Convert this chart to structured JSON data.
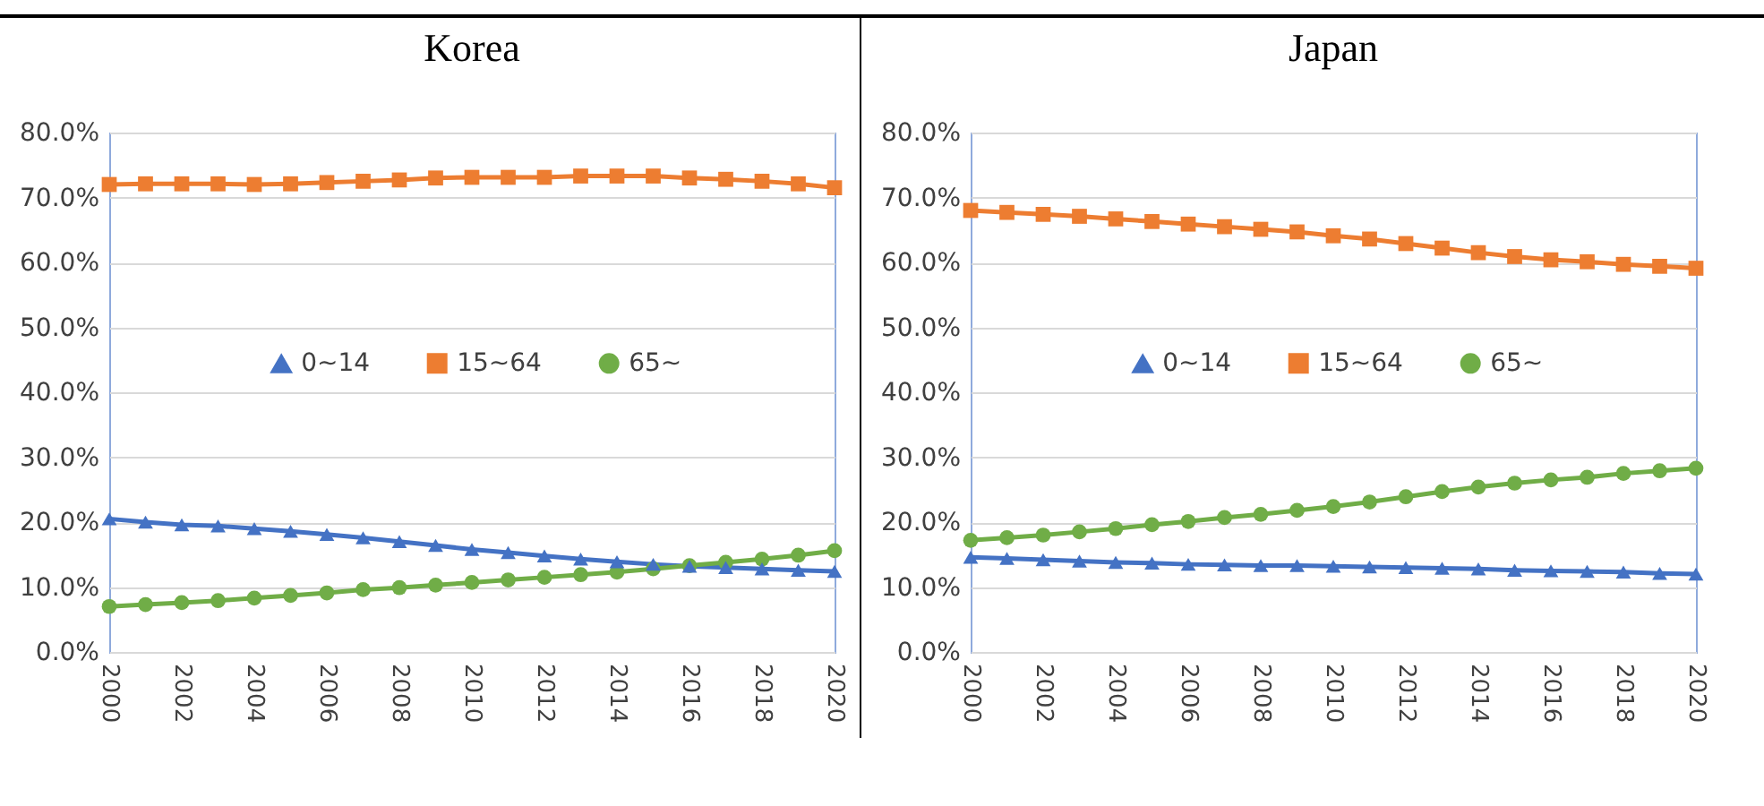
{
  "chart_data": [
    {
      "type": "line",
      "title": "Korea",
      "categories": [
        "2000",
        null,
        "2002",
        null,
        "2004",
        null,
        "2006",
        null,
        "2008",
        null,
        "2010",
        null,
        "2012",
        null,
        "2014",
        null,
        "2016",
        null,
        "2018",
        null,
        "2020"
      ],
      "ylim": [
        0,
        80
      ],
      "yticks": [
        {
          "value": 0,
          "label": "0.0%"
        },
        {
          "value": 10,
          "label": "10.0%"
        },
        {
          "value": 20,
          "label": "20.0%"
        },
        {
          "value": 30,
          "label": "30.0%"
        },
        {
          "value": 40,
          "label": "40.0%"
        },
        {
          "value": 50,
          "label": "50.0%"
        },
        {
          "value": 60,
          "label": "60.0%"
        },
        {
          "value": 70,
          "label": "70.0%"
        },
        {
          "value": 80,
          "label": "80.0%"
        }
      ],
      "grid": "y",
      "legend": "center",
      "series": [
        {
          "name": "0~14",
          "color": "#4472c4",
          "marker": "triangle",
          "values": [
            20.5,
            20.0,
            19.6,
            19.4,
            19.0,
            18.6,
            18.1,
            17.6,
            17.0,
            16.4,
            15.8,
            15.3,
            14.8,
            14.3,
            13.9,
            13.5,
            13.2,
            13.0,
            12.8,
            12.6,
            12.4
          ]
        },
        {
          "name": "15~64",
          "color": "#ed7d31",
          "marker": "square",
          "values": [
            72.0,
            72.1,
            72.1,
            72.1,
            72.0,
            72.1,
            72.3,
            72.5,
            72.7,
            73.0,
            73.1,
            73.1,
            73.1,
            73.3,
            73.3,
            73.3,
            73.0,
            72.8,
            72.5,
            72.1,
            71.5
          ]
        },
        {
          "name": "65~",
          "color": "#70ad47",
          "marker": "circle",
          "values": [
            7.0,
            7.3,
            7.6,
            7.9,
            8.3,
            8.7,
            9.1,
            9.6,
            9.9,
            10.3,
            10.7,
            11.1,
            11.5,
            11.9,
            12.3,
            12.8,
            13.3,
            13.8,
            14.3,
            14.9,
            15.6
          ]
        }
      ]
    },
    {
      "type": "line",
      "title": "Japan",
      "categories": [
        "2000",
        null,
        "2002",
        null,
        "2004",
        null,
        "2006",
        null,
        "2008",
        null,
        "2010",
        null,
        "2012",
        null,
        "2014",
        null,
        "2016",
        null,
        "2018",
        null,
        "2020"
      ],
      "ylim": [
        0,
        80
      ],
      "yticks": [
        {
          "value": 0,
          "label": "0.0%"
        },
        {
          "value": 10,
          "label": "10.0%"
        },
        {
          "value": 20,
          "label": "20.0%"
        },
        {
          "value": 30,
          "label": "30.0%"
        },
        {
          "value": 40,
          "label": "40.0%"
        },
        {
          "value": 50,
          "label": "50.0%"
        },
        {
          "value": 60,
          "label": "60.0%"
        },
        {
          "value": 70,
          "label": "70.0%"
        },
        {
          "value": 80,
          "label": "80.0%"
        }
      ],
      "grid": "y",
      "legend": "center",
      "series": [
        {
          "name": "0~14",
          "color": "#4472c4",
          "marker": "triangle",
          "values": [
            14.6,
            14.4,
            14.2,
            14.0,
            13.8,
            13.7,
            13.5,
            13.4,
            13.3,
            13.3,
            13.2,
            13.1,
            13.0,
            12.9,
            12.8,
            12.6,
            12.5,
            12.4,
            12.3,
            12.1,
            12.0
          ]
        },
        {
          "name": "15~64",
          "color": "#ed7d31",
          "marker": "square",
          "values": [
            68.0,
            67.7,
            67.4,
            67.1,
            66.7,
            66.3,
            65.9,
            65.5,
            65.1,
            64.7,
            64.1,
            63.6,
            62.9,
            62.2,
            61.5,
            60.9,
            60.4,
            60.1,
            59.7,
            59.4,
            59.1
          ]
        },
        {
          "name": "65~",
          "color": "#70ad47",
          "marker": "circle",
          "values": [
            17.2,
            17.6,
            18.0,
            18.5,
            19.0,
            19.6,
            20.1,
            20.7,
            21.2,
            21.8,
            22.4,
            23.1,
            23.9,
            24.7,
            25.4,
            26.0,
            26.5,
            26.9,
            27.5,
            27.9,
            28.3
          ]
        }
      ]
    }
  ]
}
